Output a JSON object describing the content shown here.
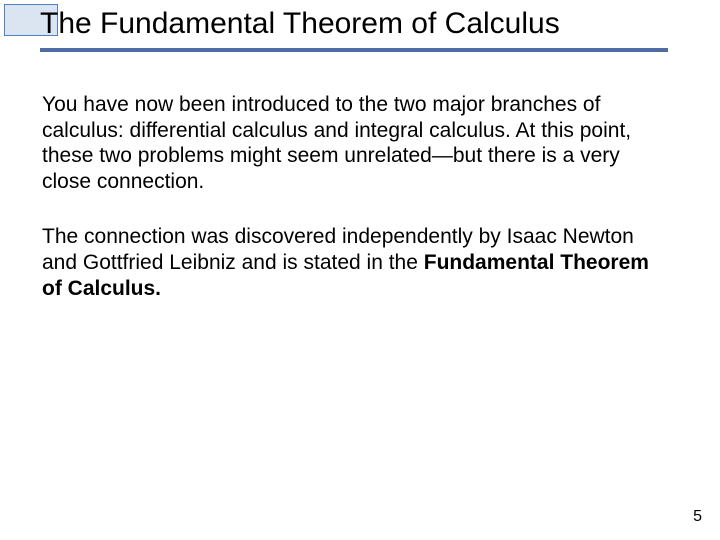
{
  "slide": {
    "title": "The Fundamental Theorem of Calculus",
    "title_fontsize": 30,
    "title_color": "#000000",
    "underline_color": "#4f6ca5",
    "corner_box_fill": "#dbe5f1",
    "corner_box_border": "#4f81bd",
    "background_color": "#ffffff",
    "paragraphs": [
      {
        "text": "You have now been introduced to the two major branches of calculus: differential calculus and integral calculus. At this point, these two problems might seem unrelated—but there is a very close connection."
      },
      {
        "prefix": "The connection was discovered independently by Isaac Newton and Gottfried Leibniz and is stated in the ",
        "bold": "Fundamental Theorem of Calculus."
      }
    ],
    "body_fontsize": 21,
    "body_color": "#000000",
    "page_number": "5",
    "page_number_fontsize": 16
  }
}
